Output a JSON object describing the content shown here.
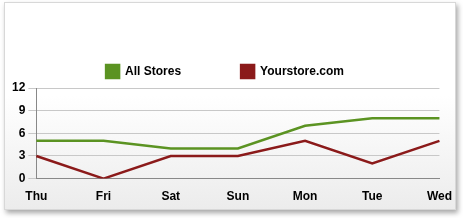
{
  "chart_data": {
    "type": "line",
    "categories": [
      "Thu",
      "Fri",
      "Sat",
      "Sun",
      "Mon",
      "Tue",
      "Wed"
    ],
    "series": [
      {
        "name": "All Stores",
        "color": "#5b9322",
        "values": [
          5,
          5,
          4,
          4,
          7,
          8,
          8
        ]
      },
      {
        "name": "Yourstore.com",
        "color": "#8b1a1a",
        "values": [
          3,
          0,
          3,
          3,
          5,
          2,
          5
        ]
      }
    ],
    "ylim": [
      0,
      12
    ],
    "yticks": [
      0,
      3,
      6,
      9,
      12
    ],
    "grid": true,
    "legend": "top"
  }
}
